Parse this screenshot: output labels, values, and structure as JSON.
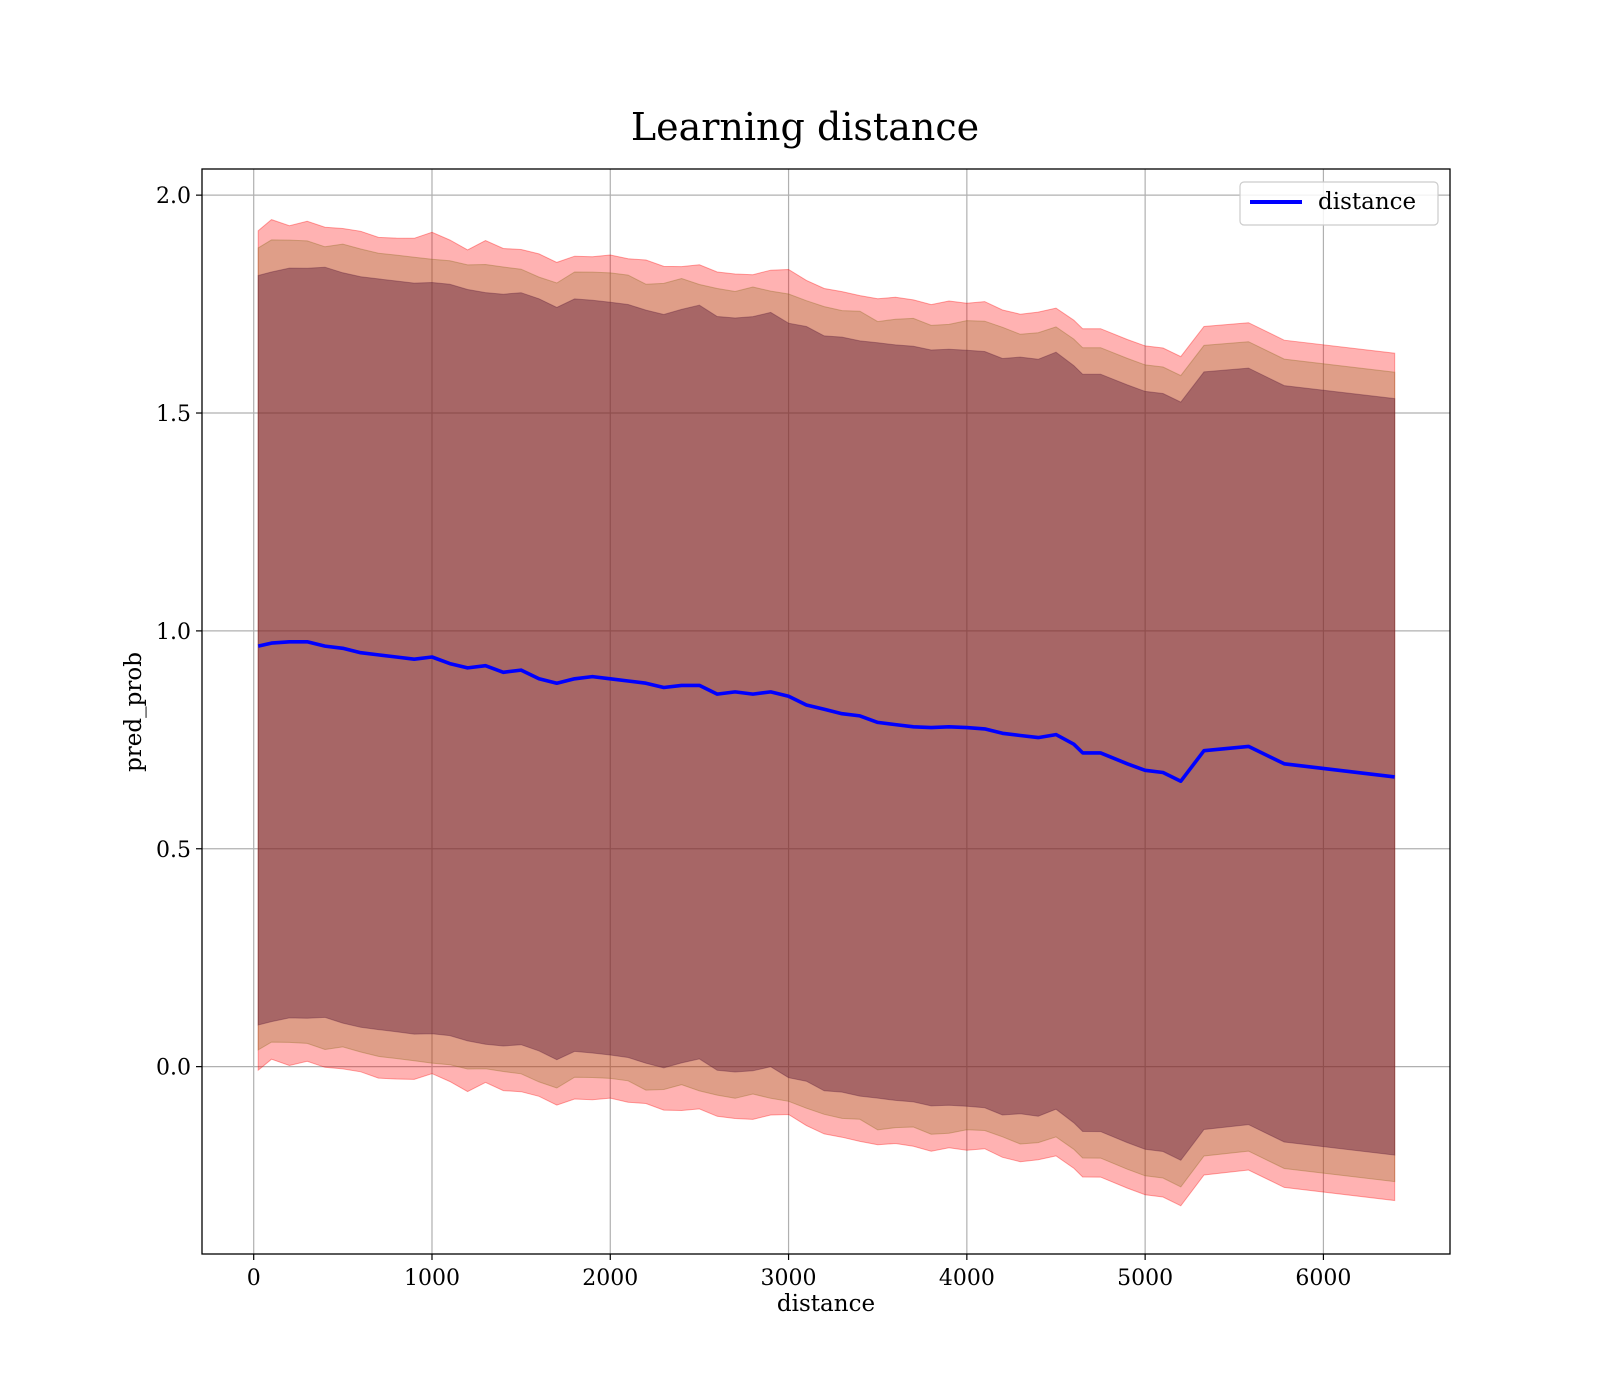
{
  "chart_data": {
    "type": "line",
    "title": "Learning distance",
    "xlabel": "distance",
    "ylabel": "pred_prob",
    "xlim": [
      -290,
      6710
    ],
    "ylim": [
      -0.43,
      2.06
    ],
    "xticks": [
      0,
      1000,
      2000,
      3000,
      4000,
      5000,
      6000
    ],
    "xtick_labels": [
      "0",
      "1000",
      "2000",
      "3000",
      "4000",
      "5000",
      "6000"
    ],
    "yticks": [
      0.0,
      0.5,
      1.0,
      1.5,
      2.0
    ],
    "ytick_labels": [
      "0.0",
      "0.5",
      "1.0",
      "1.5",
      "2.0"
    ],
    "grid": true,
    "legend_position": "top-right",
    "colors": {
      "line": "#0000ff",
      "band_outer": "#ff0000",
      "band_middle": "#8b6a1e",
      "band_inner": "#5a1a38"
    },
    "x": [
      25,
      100,
      200,
      300,
      400,
      500,
      600,
      700,
      800,
      900,
      1000,
      1100,
      1200,
      1300,
      1400,
      1500,
      1600,
      1700,
      1800,
      1900,
      2000,
      2100,
      2200,
      2300,
      2400,
      2500,
      2600,
      2700,
      2800,
      2900,
      3000,
      3100,
      3200,
      3300,
      3400,
      3500,
      3600,
      3700,
      3800,
      3900,
      4000,
      4100,
      4200,
      4300,
      4400,
      4500,
      4600,
      4650,
      4750,
      4900,
      5000,
      5100,
      5200,
      5330,
      5580,
      5780,
      6400
    ],
    "series": [
      {
        "name": "distance",
        "values": [
          0.965,
          0.972,
          0.975,
          0.975,
          0.965,
          0.96,
          0.95,
          0.945,
          0.94,
          0.935,
          0.94,
          0.925,
          0.915,
          0.92,
          0.905,
          0.91,
          0.89,
          0.88,
          0.89,
          0.895,
          0.89,
          0.885,
          0.88,
          0.87,
          0.875,
          0.875,
          0.855,
          0.86,
          0.855,
          0.86,
          0.85,
          0.83,
          0.82,
          0.81,
          0.805,
          0.79,
          0.785,
          0.78,
          0.778,
          0.78,
          0.778,
          0.775,
          0.765,
          0.76,
          0.755,
          0.762,
          0.74,
          0.72,
          0.72,
          0.695,
          0.68,
          0.675,
          0.655,
          0.725,
          0.735,
          0.695,
          0.665
        ]
      }
    ]
  }
}
